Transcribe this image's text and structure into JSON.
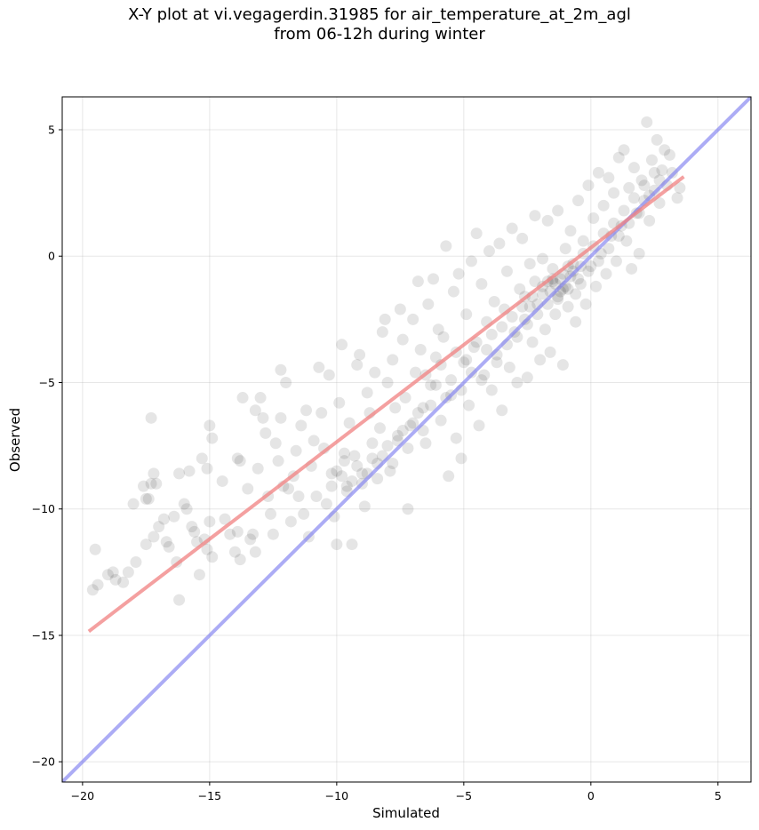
{
  "chart_data": {
    "type": "scatter",
    "title_lines": [
      "X-Y plot at vi.vegagerdin.31985 for air_temperature_at_2m_agl",
      "from 06-12h during winter"
    ],
    "xlabel": "Simulated",
    "ylabel": "Observed",
    "xlim": [
      -20.8,
      6.3
    ],
    "ylim": [
      -20.8,
      6.3
    ],
    "xticks": [
      -20,
      -15,
      -10,
      -5,
      0,
      5
    ],
    "yticks": [
      -20,
      -15,
      -10,
      -5,
      0,
      5
    ],
    "xtick_labels": [
      "−20",
      "−15",
      "−10",
      "−5",
      "0",
      "5"
    ],
    "ytick_labels": [
      "−20",
      "−15",
      "−10",
      "−5",
      "0",
      "5"
    ],
    "grid": true,
    "point_color": "#000000",
    "points": [
      [
        -19.6,
        -13.2
      ],
      [
        -19.5,
        -11.6
      ],
      [
        -19.4,
        -13.0
      ],
      [
        -19.0,
        -12.6
      ],
      [
        -18.8,
        -12.5
      ],
      [
        -18.7,
        -12.8
      ],
      [
        -18.4,
        -12.9
      ],
      [
        -18.2,
        -12.5
      ],
      [
        -17.9,
        -12.1
      ],
      [
        -18.0,
        -9.8
      ],
      [
        -17.6,
        -9.1
      ],
      [
        -17.5,
        -9.6
      ],
      [
        -17.3,
        -9.0
      ],
      [
        -17.4,
        -9.6
      ],
      [
        -17.2,
        -8.6
      ],
      [
        -17.1,
        -9.0
      ],
      [
        -17.3,
        -6.4
      ],
      [
        -17.5,
        -11.4
      ],
      [
        -17.2,
        -11.1
      ],
      [
        -17.0,
        -10.7
      ],
      [
        -16.8,
        -10.4
      ],
      [
        -16.7,
        -11.3
      ],
      [
        -16.6,
        -11.5
      ],
      [
        -16.4,
        -10.3
      ],
      [
        -16.3,
        -12.1
      ],
      [
        -16.2,
        -8.6
      ],
      [
        -16.0,
        -9.8
      ],
      [
        -15.8,
        -8.5
      ],
      [
        -15.9,
        -10.0
      ],
      [
        -15.7,
        -10.7
      ],
      [
        -15.6,
        -10.9
      ],
      [
        -15.5,
        -11.3
      ],
      [
        -15.4,
        -12.6
      ],
      [
        -16.2,
        -13.6
      ],
      [
        -15.2,
        -11.2
      ],
      [
        -15.1,
        -11.6
      ],
      [
        -15.0,
        -10.5
      ],
      [
        -14.9,
        -11.9
      ],
      [
        -15.3,
        -8.0
      ],
      [
        -15.1,
        -8.4
      ],
      [
        -14.9,
        -7.2
      ],
      [
        -15.0,
        -6.7
      ],
      [
        -14.5,
        -8.9
      ],
      [
        -14.4,
        -10.4
      ],
      [
        -14.2,
        -11.0
      ],
      [
        -14.0,
        -11.7
      ],
      [
        -13.9,
        -10.9
      ],
      [
        -13.8,
        -12.0
      ],
      [
        -13.8,
        -8.1
      ],
      [
        -13.9,
        -8.0
      ],
      [
        -13.7,
        -5.6
      ],
      [
        -13.5,
        -9.2
      ],
      [
        -13.4,
        -11.2
      ],
      [
        -13.3,
        -11.0
      ],
      [
        -13.2,
        -11.7
      ],
      [
        -13.1,
        -8.4
      ],
      [
        -13.2,
        -6.1
      ],
      [
        -13.0,
        -5.6
      ],
      [
        -12.9,
        -6.4
      ],
      [
        -12.8,
        -7.0
      ],
      [
        -12.7,
        -9.5
      ],
      [
        -12.6,
        -10.2
      ],
      [
        -12.5,
        -11.0
      ],
      [
        -12.4,
        -7.4
      ],
      [
        -12.3,
        -8.1
      ],
      [
        -12.2,
        -6.4
      ],
      [
        -12.1,
        -9.1
      ],
      [
        -12.0,
        -5.0
      ],
      [
        -12.2,
        -4.5
      ],
      [
        -11.9,
        -9.2
      ],
      [
        -11.8,
        -10.5
      ],
      [
        -11.7,
        -8.7
      ],
      [
        -11.6,
        -7.7
      ],
      [
        -11.5,
        -9.5
      ],
      [
        -11.4,
        -6.7
      ],
      [
        -11.3,
        -10.2
      ],
      [
        -11.2,
        -6.1
      ],
      [
        -11.1,
        -11.1
      ],
      [
        -11.0,
        -8.3
      ],
      [
        -10.9,
        -7.3
      ],
      [
        -10.8,
        -9.5
      ],
      [
        -10.7,
        -4.4
      ],
      [
        -10.6,
        -6.2
      ],
      [
        -10.5,
        -7.6
      ],
      [
        -10.4,
        -9.8
      ],
      [
        -10.3,
        -4.7
      ],
      [
        -10.2,
        -8.6
      ],
      [
        -10.1,
        -10.3
      ],
      [
        -10.0,
        -11.4
      ],
      [
        -9.9,
        -5.8
      ],
      [
        -9.8,
        -3.5
      ],
      [
        -9.7,
        -8.1
      ],
      [
        -9.6,
        -9.1
      ],
      [
        -9.5,
        -6.6
      ],
      [
        -9.4,
        -11.4
      ],
      [
        -9.3,
        -7.9
      ],
      [
        -9.2,
        -4.3
      ],
      [
        -9.1,
        -3.9
      ],
      [
        -9.0,
        -8.6
      ],
      [
        -8.9,
        -9.9
      ],
      [
        -8.8,
        -5.4
      ],
      [
        -8.7,
        -6.2
      ],
      [
        -8.6,
        -7.4
      ],
      [
        -8.5,
        -4.6
      ],
      [
        -8.4,
        -8.2
      ],
      [
        -8.3,
        -6.8
      ],
      [
        -8.2,
        -3.0
      ],
      [
        -8.1,
        -2.5
      ],
      [
        -8.0,
        -5.0
      ],
      [
        -7.9,
        -8.5
      ],
      [
        -7.8,
        -4.1
      ],
      [
        -7.7,
        -6.0
      ],
      [
        -7.6,
        -7.1
      ],
      [
        -7.5,
        -2.1
      ],
      [
        -7.4,
        -3.3
      ],
      [
        -7.3,
        -5.6
      ],
      [
        -7.2,
        -10.0
      ],
      [
        -7.1,
        -6.7
      ],
      [
        -7.0,
        -2.5
      ],
      [
        -6.9,
        -4.6
      ],
      [
        -6.8,
        -1.0
      ],
      [
        -6.7,
        -3.7
      ],
      [
        -6.6,
        -6.0
      ],
      [
        -6.5,
        -7.4
      ],
      [
        -6.4,
        -1.9
      ],
      [
        -6.3,
        -5.1
      ],
      [
        -6.2,
        -0.9
      ],
      [
        -6.1,
        -4.0
      ],
      [
        -6.0,
        -2.9
      ],
      [
        -5.9,
        -6.5
      ],
      [
        -5.8,
        -3.2
      ],
      [
        -5.7,
        0.4
      ],
      [
        -5.6,
        -8.7
      ],
      [
        -5.5,
        -5.5
      ],
      [
        -5.4,
        -1.4
      ],
      [
        -5.3,
        -7.2
      ],
      [
        -5.2,
        -0.7
      ],
      [
        -5.1,
        -8.0
      ],
      [
        -5.0,
        -4.2
      ],
      [
        -4.9,
        -2.3
      ],
      [
        -4.8,
        -5.9
      ],
      [
        -4.7,
        -0.2
      ],
      [
        -4.6,
        -3.6
      ],
      [
        -4.5,
        0.9
      ],
      [
        -4.4,
        -6.7
      ],
      [
        -4.3,
        -1.1
      ],
      [
        -4.2,
        -4.7
      ],
      [
        -4.1,
        -2.6
      ],
      [
        -4.0,
        0.2
      ],
      [
        -3.9,
        -5.3
      ],
      [
        -3.8,
        -1.8
      ],
      [
        -3.7,
        -3.9
      ],
      [
        -3.6,
        0.5
      ],
      [
        -3.5,
        -6.1
      ],
      [
        -3.4,
        -2.1
      ],
      [
        -3.3,
        -0.6
      ],
      [
        -3.2,
        -4.4
      ],
      [
        -3.1,
        1.1
      ],
      [
        -3.0,
        -3.0
      ],
      [
        -2.9,
        -5.0
      ],
      [
        -2.8,
        -1.3
      ],
      [
        -2.7,
        0.7
      ],
      [
        -2.6,
        -2.5
      ],
      [
        -2.5,
        -4.8
      ],
      [
        -2.4,
        -0.3
      ],
      [
        -2.3,
        -3.4
      ],
      [
        -2.2,
        1.6
      ],
      [
        -2.1,
        -1.9
      ],
      [
        -2.0,
        -4.1
      ],
      [
        -1.9,
        -0.1
      ],
      [
        -1.8,
        -2.9
      ],
      [
        -1.7,
        1.4
      ],
      [
        -1.6,
        -3.8
      ],
      [
        -1.5,
        -0.9
      ],
      [
        -1.4,
        -2.3
      ],
      [
        -1.3,
        1.8
      ],
      [
        -1.2,
        -1.4
      ],
      [
        -1.1,
        -4.3
      ],
      [
        -1.0,
        0.3
      ],
      [
        -0.9,
        -2.0
      ],
      [
        -0.8,
        1.0
      ],
      [
        -0.7,
        -0.6
      ],
      [
        -0.6,
        -2.6
      ],
      [
        -0.5,
        2.2
      ],
      [
        -0.4,
        -1.1
      ],
      [
        -0.3,
        0.6
      ],
      [
        -0.2,
        -1.9
      ],
      [
        -0.1,
        2.8
      ],
      [
        0.0,
        -0.4
      ],
      [
        0.1,
        1.5
      ],
      [
        0.2,
        -1.2
      ],
      [
        0.3,
        3.3
      ],
      [
        0.4,
        0.1
      ],
      [
        0.5,
        2.0
      ],
      [
        0.6,
        -0.7
      ],
      [
        0.7,
        3.1
      ],
      [
        0.8,
        0.8
      ],
      [
        0.9,
        2.5
      ],
      [
        1.0,
        -0.2
      ],
      [
        1.1,
        3.9
      ],
      [
        1.2,
        1.2
      ],
      [
        1.3,
        4.2
      ],
      [
        1.4,
        0.6
      ],
      [
        1.5,
        2.7
      ],
      [
        1.6,
        -0.5
      ],
      [
        1.7,
        3.5
      ],
      [
        1.8,
        1.7
      ],
      [
        1.9,
        0.1
      ],
      [
        2.0,
        3.0
      ],
      [
        2.1,
        2.2
      ],
      [
        2.2,
        5.3
      ],
      [
        2.3,
        1.4
      ],
      [
        2.4,
        3.8
      ],
      [
        2.5,
        2.6
      ],
      [
        2.6,
        4.6
      ],
      [
        2.7,
        2.1
      ],
      [
        2.8,
        3.4
      ],
      [
        2.9,
        4.2
      ],
      [
        3.0,
        2.8
      ],
      [
        3.1,
        4.0
      ],
      [
        3.2,
        3.3
      ],
      [
        3.4,
        2.3
      ],
      [
        3.5,
        2.7
      ],
      [
        -6.5,
        -4.7
      ],
      [
        -6.3,
        -5.9
      ],
      [
        -6.1,
        -5.1
      ],
      [
        -5.9,
        -4.3
      ],
      [
        -5.7,
        -5.6
      ],
      [
        -5.5,
        -4.9
      ],
      [
        -5.3,
        -3.8
      ],
      [
        -5.1,
        -5.3
      ],
      [
        -4.9,
        -4.1
      ],
      [
        -4.7,
        -4.6
      ],
      [
        -4.5,
        -3.4
      ],
      [
        -4.3,
        -4.9
      ],
      [
        -4.1,
        -3.7
      ],
      [
        -3.9,
        -3.1
      ],
      [
        -3.7,
        -4.2
      ],
      [
        -3.5,
        -2.8
      ],
      [
        -3.3,
        -3.5
      ],
      [
        -3.1,
        -2.4
      ],
      [
        -2.9,
        -3.2
      ],
      [
        -2.7,
        -2.0
      ],
      [
        -2.5,
        -2.7
      ],
      [
        -2.3,
        -1.6
      ],
      [
        -2.1,
        -2.3
      ],
      [
        -1.9,
        -1.2
      ],
      [
        -1.7,
        -1.9
      ],
      [
        -1.5,
        -1.0
      ],
      [
        -1.3,
        -1.6
      ],
      [
        -1.1,
        -0.7
      ],
      [
        -0.9,
        -1.3
      ],
      [
        -0.7,
        -0.3
      ],
      [
        -0.5,
        -0.9
      ],
      [
        -0.3,
        0.1
      ],
      [
        -0.1,
        -0.6
      ],
      [
        0.1,
        0.4
      ],
      [
        0.3,
        -0.2
      ],
      [
        0.5,
        0.9
      ],
      [
        0.7,
        0.3
      ],
      [
        0.9,
        1.3
      ],
      [
        1.1,
        0.8
      ],
      [
        1.3,
        1.8
      ],
      [
        1.5,
        1.3
      ],
      [
        1.7,
        2.3
      ],
      [
        1.9,
        1.7
      ],
      [
        2.1,
        2.8
      ],
      [
        2.3,
        2.4
      ],
      [
        2.5,
        3.3
      ],
      [
        2.7,
        3.0
      ],
      [
        -1.6,
        -1.4
      ],
      [
        -1.4,
        -1.1
      ],
      [
        -1.2,
        -0.9
      ],
      [
        -1.0,
        -1.2
      ],
      [
        -0.8,
        -0.8
      ],
      [
        -1.5,
        -0.5
      ],
      [
        -1.3,
        -1.7
      ],
      [
        -1.1,
        -1.3
      ],
      [
        -0.9,
        -0.4
      ],
      [
        -1.7,
        -1.0
      ],
      [
        -1.9,
        -1.5
      ],
      [
        -2.2,
        -1.0
      ],
      [
        -0.6,
        -1.5
      ],
      [
        -0.4,
        -0.4
      ],
      [
        -2.4,
        -2.0
      ],
      [
        -2.6,
        -1.6
      ],
      [
        -9.8,
        -8.7
      ],
      [
        -9.6,
        -9.3
      ],
      [
        -9.4,
        -8.9
      ],
      [
        -9.2,
        -8.3
      ],
      [
        -9.0,
        -9.0
      ],
      [
        -8.8,
        -8.6
      ],
      [
        -8.6,
        -8.0
      ],
      [
        -8.4,
        -8.8
      ],
      [
        -8.2,
        -7.9
      ],
      [
        -8.0,
        -7.5
      ],
      [
        -7.8,
        -8.2
      ],
      [
        -7.6,
        -7.3
      ],
      [
        -7.4,
        -6.9
      ],
      [
        -7.2,
        -7.6
      ],
      [
        -7.0,
        -6.6
      ],
      [
        -6.8,
        -6.2
      ],
      [
        -6.6,
        -6.9
      ],
      [
        -10.2,
        -9.1
      ],
      [
        -10.0,
        -8.5
      ],
      [
        -9.7,
        -7.8
      ]
    ],
    "fit_line": {
      "color": "#f08080",
      "x": [
        -19.7,
        3.6
      ],
      "y": [
        -14.8,
        3.1
      ]
    },
    "identity_line": {
      "color": "#8080f0",
      "x": [
        -20.8,
        6.3
      ],
      "y": [
        -20.8,
        6.3
      ]
    }
  }
}
